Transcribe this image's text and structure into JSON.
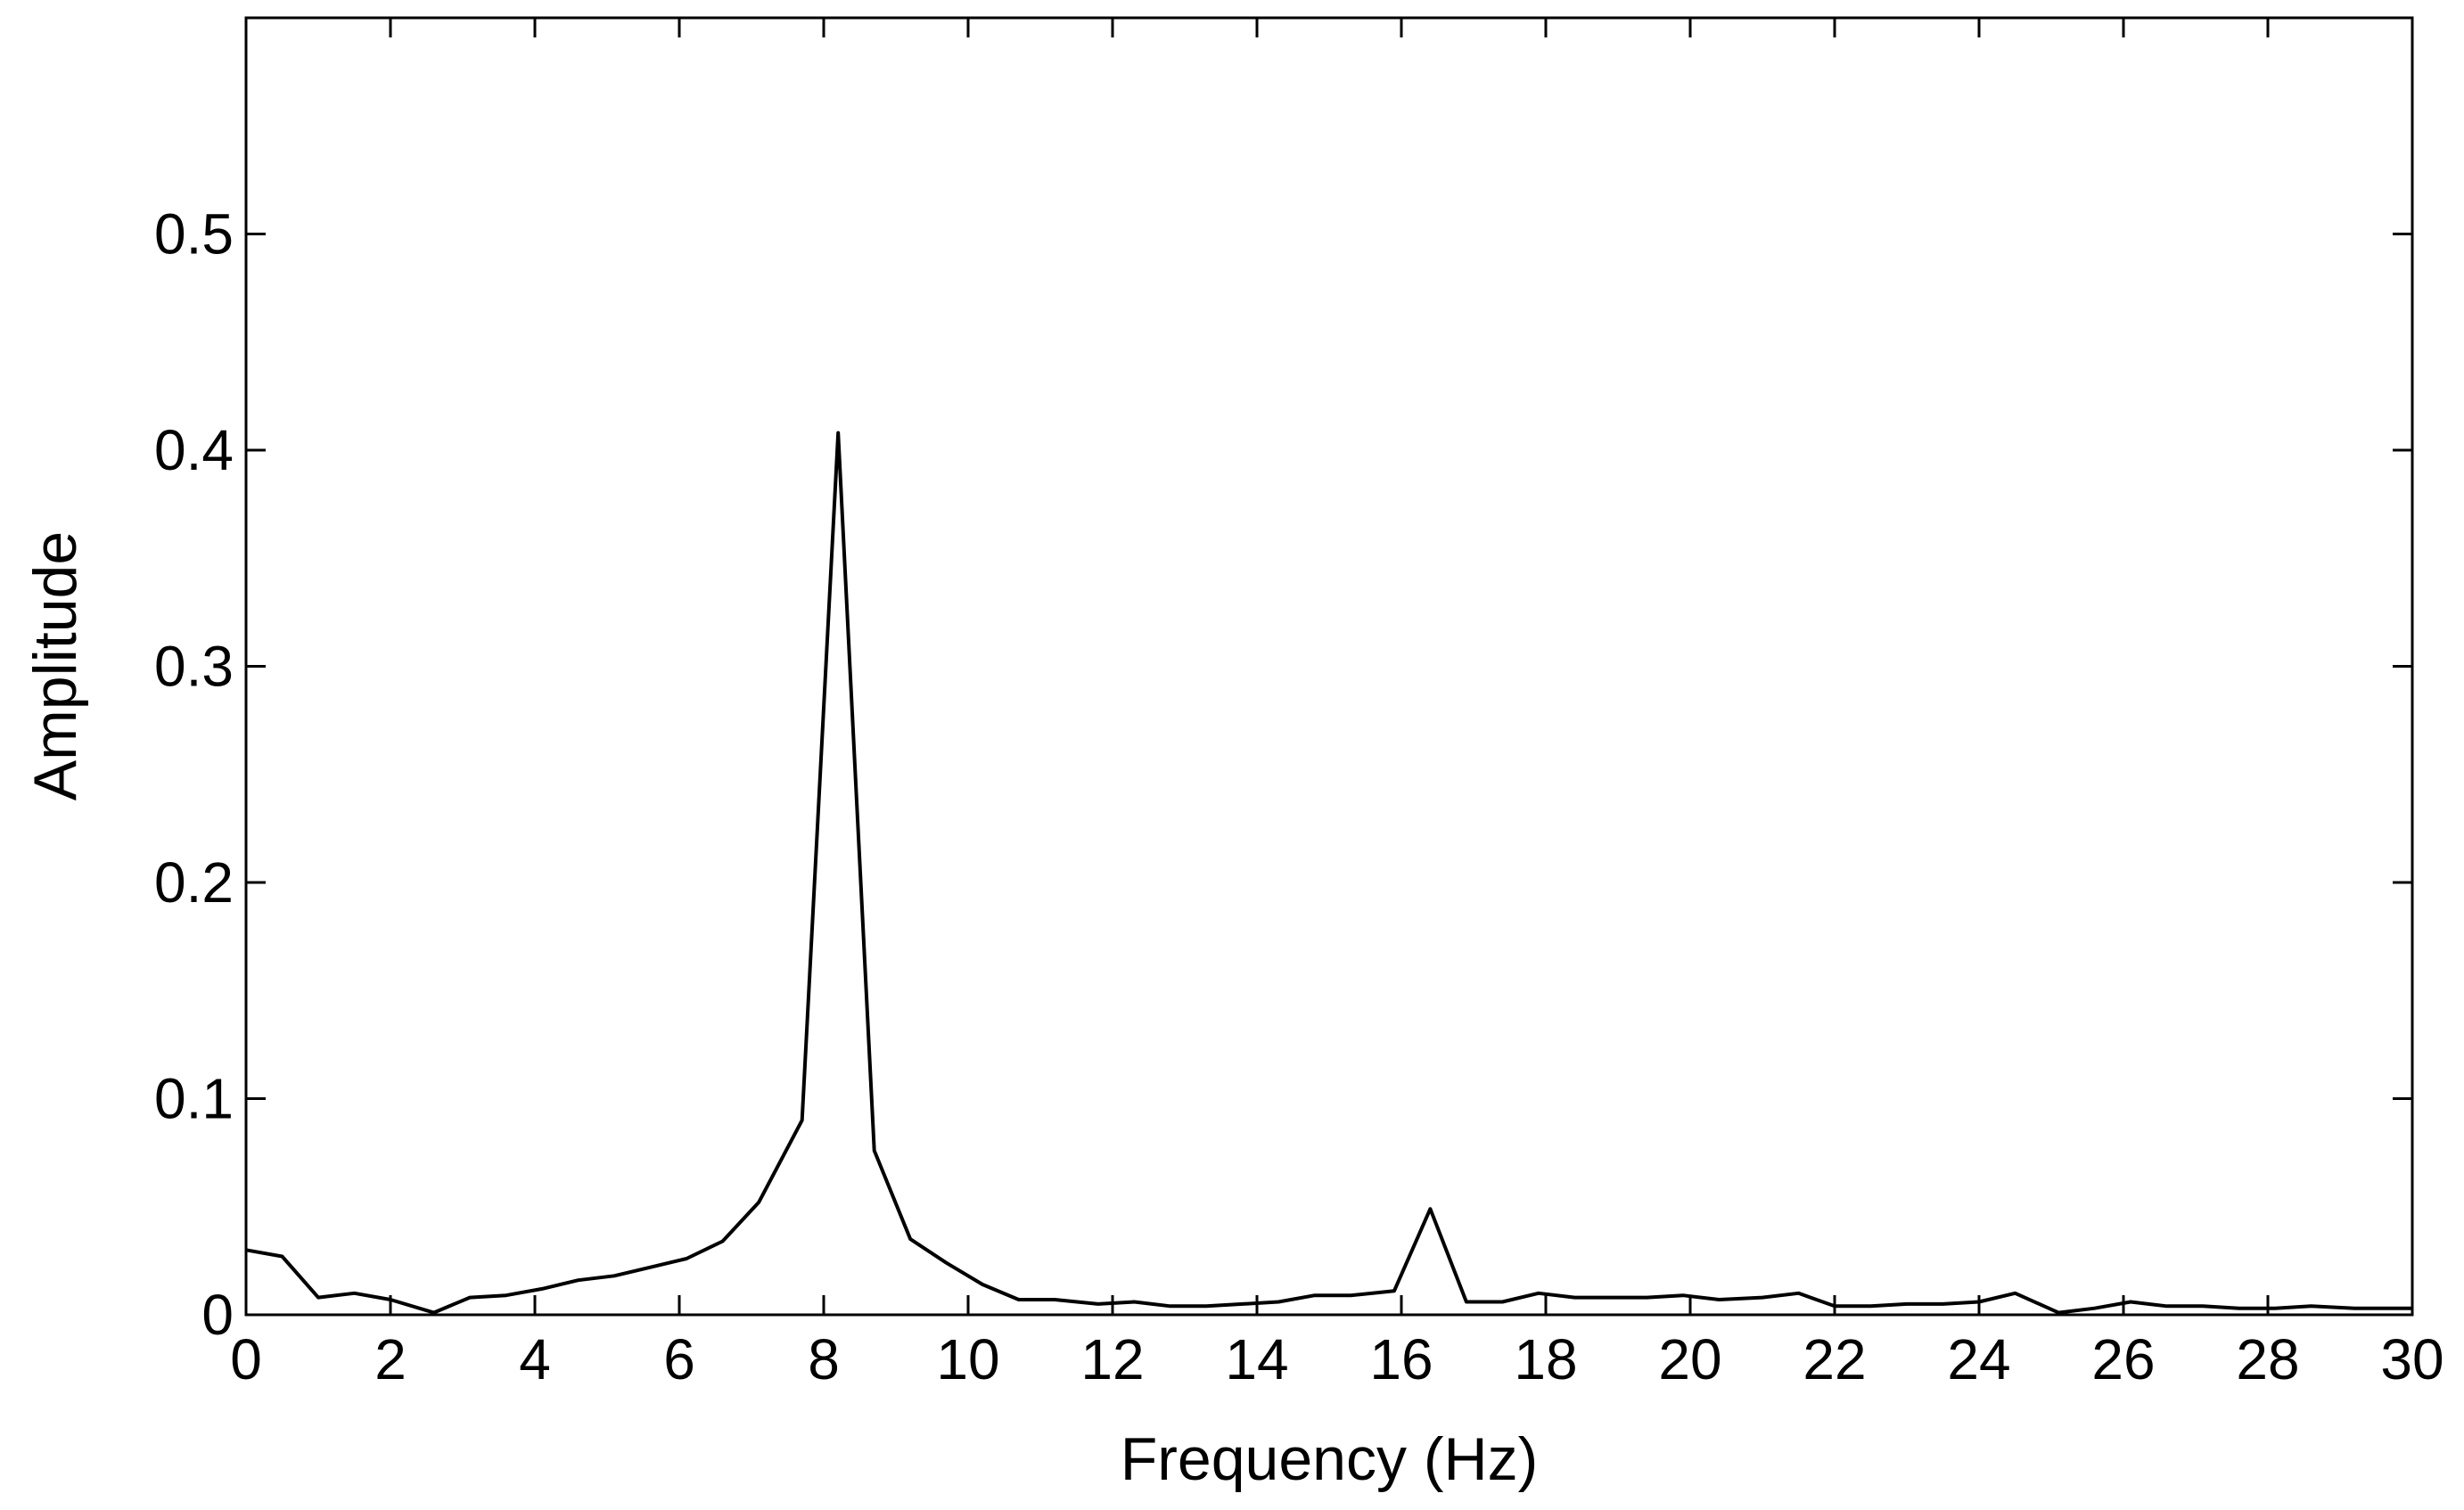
{
  "chart_data": {
    "type": "line",
    "title": "",
    "xlabel": "Frequency (Hz)",
    "ylabel": "Amplitude",
    "xlim": [
      0,
      30
    ],
    "ylim": [
      0,
      0.6
    ],
    "xticks": [
      0,
      2,
      4,
      6,
      8,
      10,
      12,
      14,
      16,
      18,
      20,
      22,
      24,
      26,
      28,
      30
    ],
    "yticks": [
      0,
      0.1,
      0.2,
      0.3,
      0.4,
      0.5
    ],
    "xtick_labels": [
      "0",
      "2",
      "4",
      "6",
      "8",
      "10",
      "12",
      "14",
      "16",
      "18",
      "20",
      "22",
      "24",
      "26",
      "28",
      "30"
    ],
    "ytick_labels": [
      "0",
      "0.1",
      "0.2",
      "0.3",
      "0.4",
      "0.5"
    ],
    "grid": false,
    "line_color": "#000000",
    "series": [
      {
        "x": [
          0,
          0.5,
          1.0,
          1.5,
          2.0,
          2.6,
          3.1,
          3.6,
          4.1,
          4.6,
          5.1,
          5.6,
          6.1,
          6.6,
          7.1,
          7.7,
          8.2,
          8.7,
          9.2,
          9.7,
          10.2,
          10.7,
          11.2,
          11.8,
          12.3,
          12.8,
          13.3,
          13.8,
          14.3,
          14.8,
          15.3,
          15.9,
          16.4,
          16.9,
          17.4,
          17.9,
          18.4,
          18.9,
          19.4,
          19.9,
          20.4,
          21.0,
          21.5,
          22.0,
          22.5,
          23.0,
          23.5,
          24.0,
          24.5,
          25.1,
          25.6,
          26.1,
          26.6,
          27.1,
          27.6,
          28.1,
          28.6,
          29.2,
          29.7,
          30.0
        ],
        "y": [
          0.03,
          0.027,
          0.008,
          0.01,
          0.007,
          0.001,
          0.008,
          0.009,
          0.012,
          0.016,
          0.018,
          0.022,
          0.026,
          0.034,
          0.052,
          0.09,
          0.408,
          0.076,
          0.035,
          0.024,
          0.014,
          0.007,
          0.007,
          0.005,
          0.006,
          0.004,
          0.004,
          0.005,
          0.006,
          0.009,
          0.009,
          0.011,
          0.049,
          0.006,
          0.006,
          0.01,
          0.008,
          0.008,
          0.008,
          0.009,
          0.007,
          0.008,
          0.01,
          0.004,
          0.004,
          0.005,
          0.005,
          0.006,
          0.01,
          0.001,
          0.003,
          0.006,
          0.004,
          0.004,
          0.003,
          0.003,
          0.004,
          0.003,
          0.003,
          0.003
        ]
      }
    ]
  }
}
